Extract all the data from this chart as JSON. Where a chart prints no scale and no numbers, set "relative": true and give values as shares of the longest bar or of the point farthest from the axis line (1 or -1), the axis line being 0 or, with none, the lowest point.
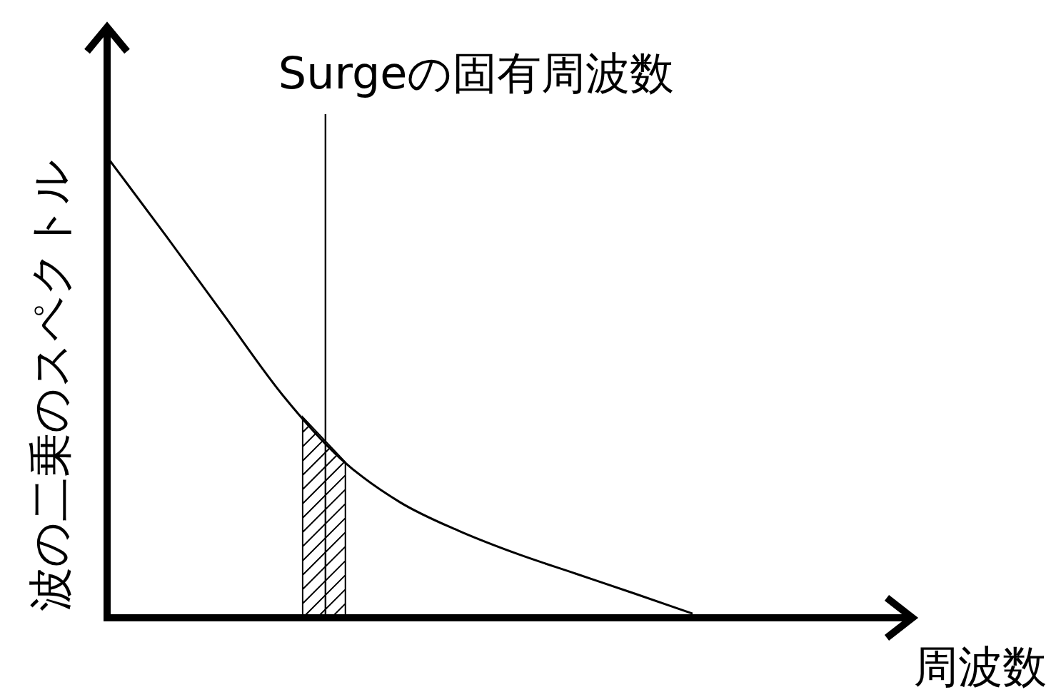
{
  "chart_data": {
    "type": "line",
    "relative": true,
    "ylabel": "波の二乗のスペクトル",
    "annotations": [
      "Surgeの固有周波数",
      "周波数"
    ],
    "categories": [
      null,
      null,
      null,
      null,
      null,
      null,
      null,
      null,
      null,
      null,
      null
    ],
    "series": [
      {
        "color": "#000000",
        "values": [
          1,
          0.83,
          0.656,
          0.483,
          0.344,
          0.251,
          0.189,
          0.139,
          0.096,
          0.053,
          0.009
        ]
      }
    ],
    "grid": false,
    "legend": false,
    "marker": "none",
    "line_style": "solid"
  }
}
